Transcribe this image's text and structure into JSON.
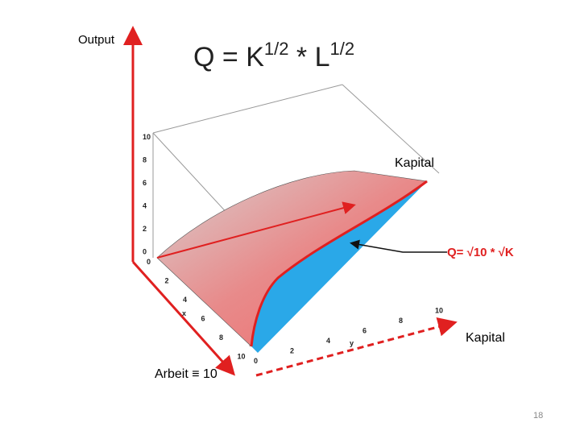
{
  "slide": {
    "output_label": "Output",
    "title": {
      "parts": [
        "Q = K",
        "1/2",
        " * L",
        "1/2"
      ]
    },
    "kapital_top": "Kapital",
    "curve_label": "Q= √10 * √K",
    "kapital_axis": "Kapital",
    "arbeit_label": "Arbeit ≡ 10",
    "page_number": "18",
    "plot": {
      "z_ticks": [
        "10",
        "8",
        "6",
        "4",
        "2",
        "0"
      ],
      "x_ticks": [
        "0",
        "2",
        "4",
        "6",
        "8",
        "10"
      ],
      "y_ticks": [
        "0",
        "2",
        "4",
        "6",
        "8",
        "10"
      ],
      "x_axis_letter": "x",
      "y_axis_letter": "y"
    }
  }
}
